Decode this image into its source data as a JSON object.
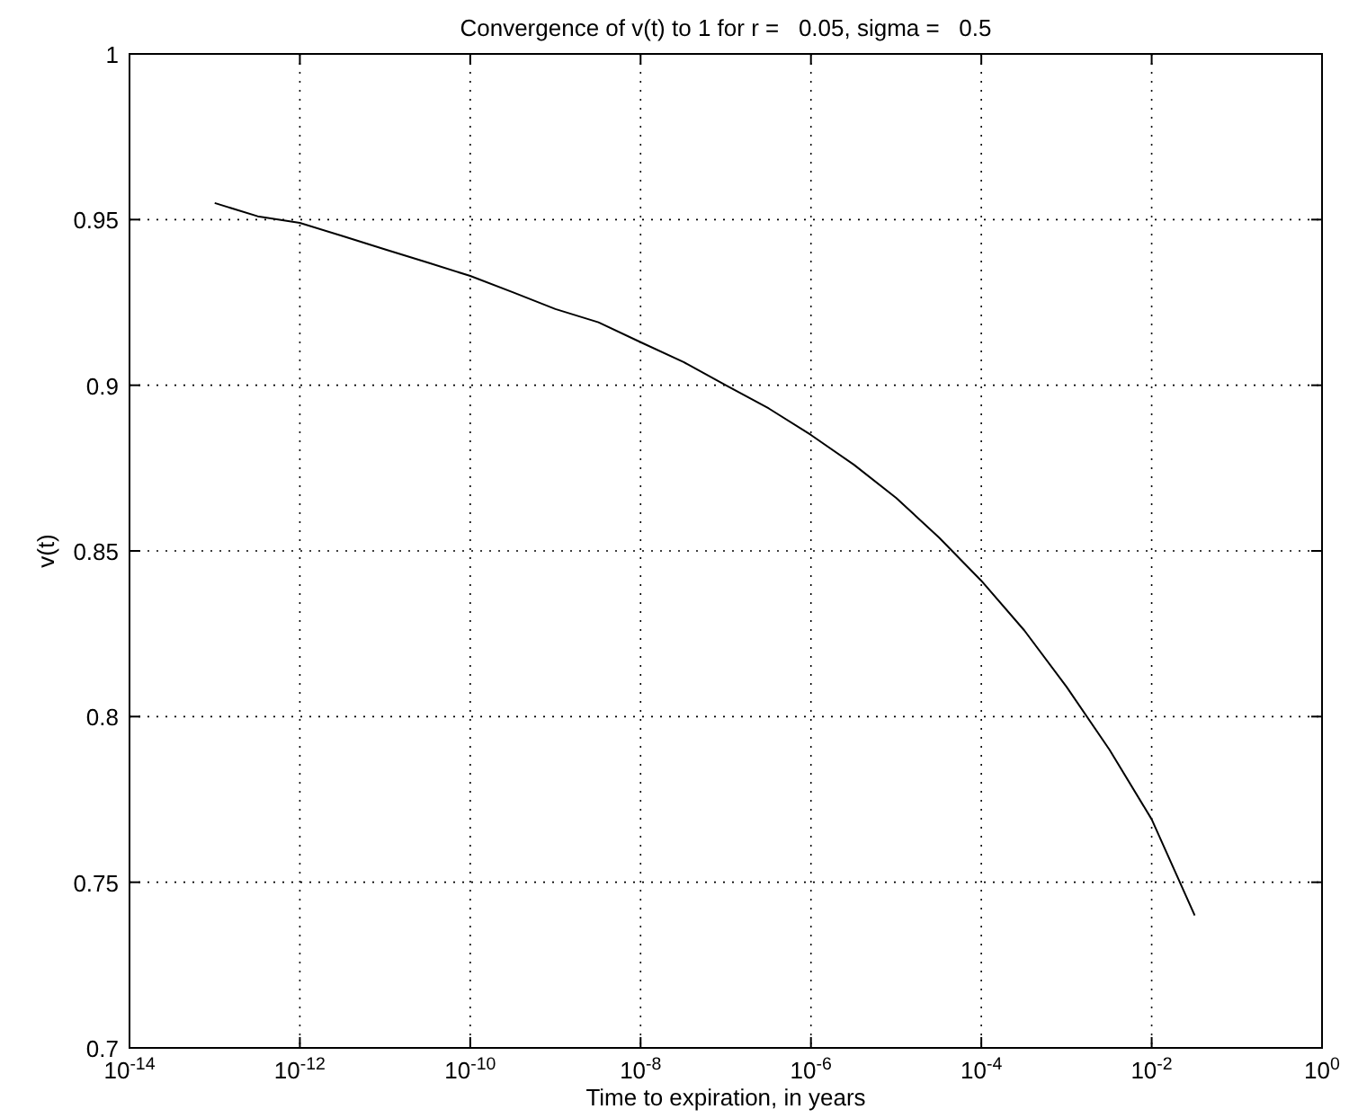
{
  "chart_data": {
    "type": "line",
    "title": "Convergence of v(t) to 1 for r =   0.05, sigma =   0.5",
    "xlabel": "Time to expiration, in years",
    "ylabel": "v(t)",
    "log": "x",
    "grid": true,
    "line_style": "solid",
    "marker": "none",
    "x": [
      1e-13,
      3.2e-13,
      1e-12,
      3.2e-12,
      1e-11,
      3.2e-11,
      1e-10,
      3.2e-10,
      1e-09,
      3.2e-09,
      1e-08,
      3.2e-08,
      1e-07,
      3.2e-07,
      1e-06,
      3.2e-06,
      1e-05,
      3.2e-05,
      0.0001,
      0.00032,
      0.001,
      0.0032,
      0.01,
      0.032
    ],
    "series": [
      {
        "color": "#000000",
        "values": [
          0.955,
          0.951,
          0.949,
          0.945,
          0.941,
          0.937,
          0.933,
          0.928,
          0.923,
          0.919,
          0.913,
          0.907,
          0.9,
          0.893,
          0.885,
          0.876,
          0.866,
          0.854,
          0.841,
          0.826,
          0.809,
          0.79,
          0.769,
          0.74
        ]
      }
    ],
    "xlim": [
      1e-14,
      1
    ],
    "ylim": [
      0.7,
      1
    ],
    "xticks": [
      {
        "value": 1e-14,
        "label": "10$^{-14}$"
      },
      {
        "value": 1e-12,
        "label": "10$^{-12}$"
      },
      {
        "value": 1e-10,
        "label": "10$^{-10}$"
      },
      {
        "value": 1e-08,
        "label": "10$^{-8}$"
      },
      {
        "value": 1e-06,
        "label": "10$^{-6}$"
      },
      {
        "value": 0.0001,
        "label": "10$^{-4}$"
      },
      {
        "value": 0.01,
        "label": "10$^{-2}$"
      },
      {
        "value": 1,
        "label": "10$^{0}$"
      }
    ],
    "yticks": [
      0.7,
      0.75,
      0.8,
      0.85,
      0.9,
      0.95,
      1
    ]
  }
}
